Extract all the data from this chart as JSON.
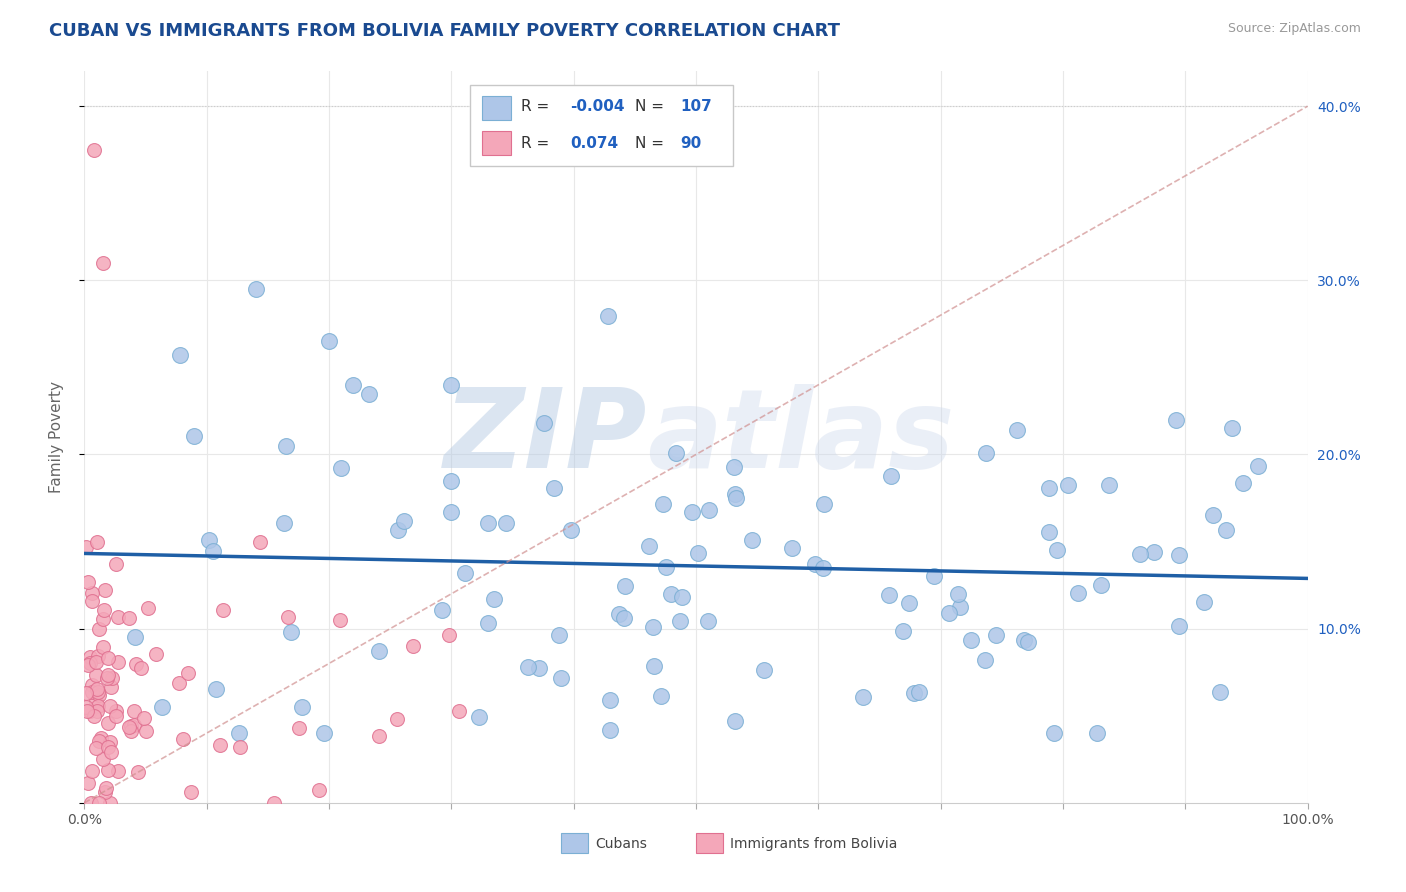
{
  "title": "CUBAN VS IMMIGRANTS FROM BOLIVIA FAMILY POVERTY CORRELATION CHART",
  "source": "Source: ZipAtlas.com",
  "ylabel": "Family Poverty",
  "xlim": [
    0.0,
    1.0
  ],
  "ylim": [
    0.0,
    0.42
  ],
  "cubans_R": -0.004,
  "cubans_N": 107,
  "bolivia_R": 0.074,
  "bolivia_N": 90,
  "cubans_color": "#aec6e8",
  "cubans_edge": "#7bafd4",
  "bolivia_color": "#f4a7b9",
  "bolivia_edge": "#e07090",
  "cubans_line_color": "#1f5fa6",
  "bolivia_line_color": "#d09090",
  "legend_text_color": "#2060c0",
  "title_color": "#1a4a90",
  "background_color": "#ffffff",
  "grid_color": "#e8e8e8",
  "axis_line_color": "#cccccc"
}
